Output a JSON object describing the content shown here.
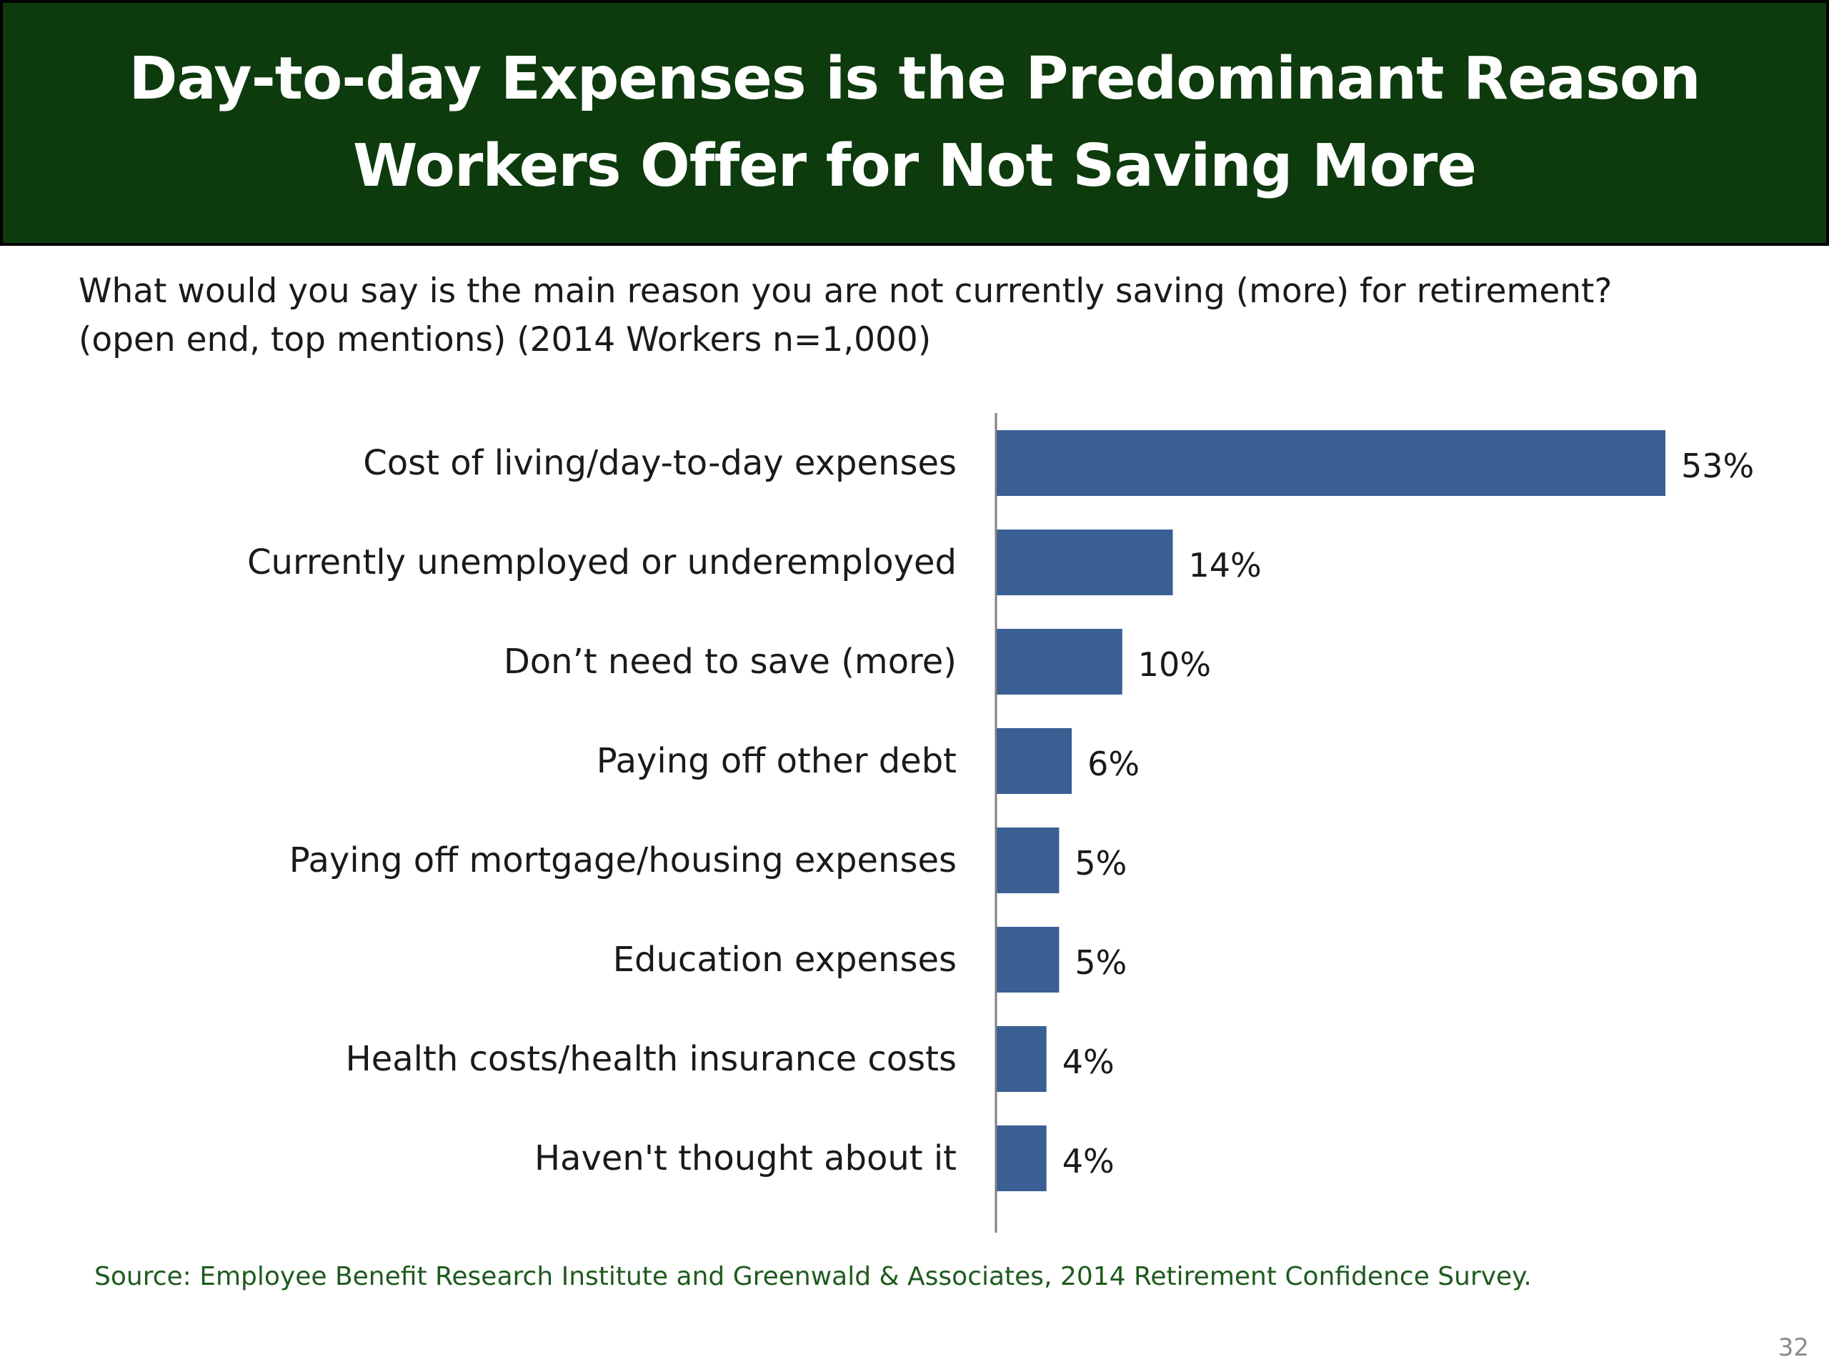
{
  "title": "Day-to-day Expenses is the Predominant Reason Workers Offer for Not Saving More",
  "subtitle": {
    "line1": "What would you say is the main reason you are not currently saving (more) for retirement?",
    "line2": "(open end, top mentions) (2014 Workers n=1,000)"
  },
  "chart_data": {
    "type": "bar",
    "orientation": "horizontal",
    "categories": [
      "Cost of living/day-to-day expenses",
      "Currently unemployed or underemployed",
      "Don’t need to save (more)",
      "Paying off other debt",
      "Paying off mortgage/housing expenses",
      "Education expenses",
      "Health costs/health insurance costs",
      "Haven't thought about it"
    ],
    "values": [
      53,
      14,
      10,
      6,
      5,
      5,
      4,
      4
    ],
    "value_labels": [
      "53%",
      "14%",
      "10%",
      "6%",
      "5%",
      "5%",
      "4%",
      "4%"
    ],
    "unit": "%",
    "xlim": [
      0,
      53
    ],
    "grid": false,
    "bar_color": "#3a5f93"
  },
  "source": "Source:  Employee Benefit Research Institute and Greenwald & Associates, 2014 Retirement Confidence Survey.",
  "page_number": "32"
}
